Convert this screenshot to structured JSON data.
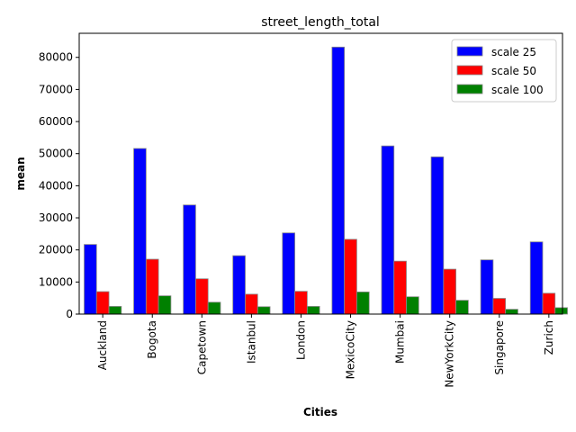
{
  "chart_data": {
    "type": "bar",
    "title": "street_length_total",
    "xlabel": "Cities",
    "ylabel": "mean",
    "categories": [
      "Auckland",
      "Bogota",
      "Capetown",
      "Istanbul",
      "London",
      "MexicoCity",
      "Mumbai",
      "NewYorkCity",
      "Singapore",
      "Zurich"
    ],
    "series": [
      {
        "name": "scale 25",
        "color": "#0000ff",
        "values": [
          21700,
          51600,
          34000,
          18200,
          25300,
          83200,
          52400,
          49000,
          16900,
          22500
        ]
      },
      {
        "name": "scale 50",
        "color": "#ff0000",
        "values": [
          7000,
          17100,
          11000,
          6200,
          7100,
          23300,
          16500,
          14000,
          4900,
          6500
        ]
      },
      {
        "name": "scale 100",
        "color": "#008000",
        "values": [
          2400,
          5700,
          3700,
          2300,
          2400,
          6900,
          5400,
          4300,
          1500,
          2000
        ]
      }
    ],
    "ylim": [
      0,
      87500
    ],
    "yticks": [
      0,
      10000,
      20000,
      30000,
      40000,
      50000,
      60000,
      70000,
      80000
    ],
    "grid": false,
    "legend_position": "top-right"
  }
}
